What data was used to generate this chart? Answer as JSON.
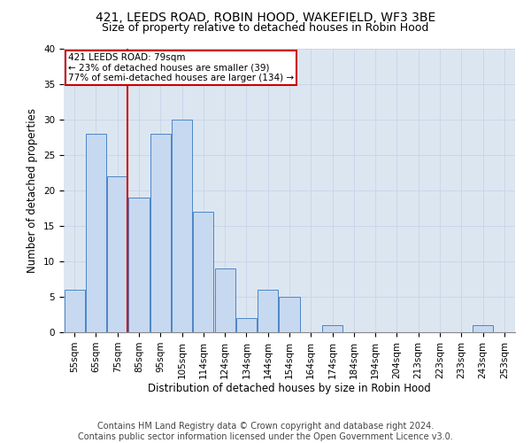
{
  "title": "421, LEEDS ROAD, ROBIN HOOD, WAKEFIELD, WF3 3BE",
  "subtitle": "Size of property relative to detached houses in Robin Hood",
  "xlabel": "Distribution of detached houses by size in Robin Hood",
  "ylabel": "Number of detached properties",
  "categories": [
    "55sqm",
    "65sqm",
    "75sqm",
    "85sqm",
    "95sqm",
    "105sqm",
    "114sqm",
    "124sqm",
    "134sqm",
    "144sqm",
    "154sqm",
    "164sqm",
    "174sqm",
    "184sqm",
    "194sqm",
    "204sqm",
    "213sqm",
    "223sqm",
    "233sqm",
    "243sqm",
    "253sqm"
  ],
  "values": [
    6,
    28,
    22,
    19,
    28,
    30,
    17,
    9,
    2,
    6,
    5,
    0,
    1,
    0,
    0,
    0,
    0,
    0,
    0,
    1,
    0
  ],
  "bar_color": "#c6d9f0",
  "bar_edge_color": "#4a86c8",
  "marker_label": "421 LEEDS ROAD: 79sqm",
  "annotation_line1": "← 23% of detached houses are smaller (39)",
  "annotation_line2": "77% of semi-detached houses are larger (134) →",
  "annotation_box_color": "#ffffff",
  "annotation_box_edge": "#cc0000",
  "marker_line_color": "#cc0000",
  "ylim": [
    0,
    40
  ],
  "yticks": [
    0,
    5,
    10,
    15,
    20,
    25,
    30,
    35,
    40
  ],
  "grid_color": "#c8d4e8",
  "background_color": "#dce6f1",
  "footer_line1": "Contains HM Land Registry data © Crown copyright and database right 2024.",
  "footer_line2": "Contains public sector information licensed under the Open Government Licence v3.0.",
  "title_fontsize": 10,
  "subtitle_fontsize": 9,
  "tick_fontsize": 7.5,
  "label_fontsize": 8.5,
  "annotation_fontsize": 7.5,
  "footer_fontsize": 7
}
